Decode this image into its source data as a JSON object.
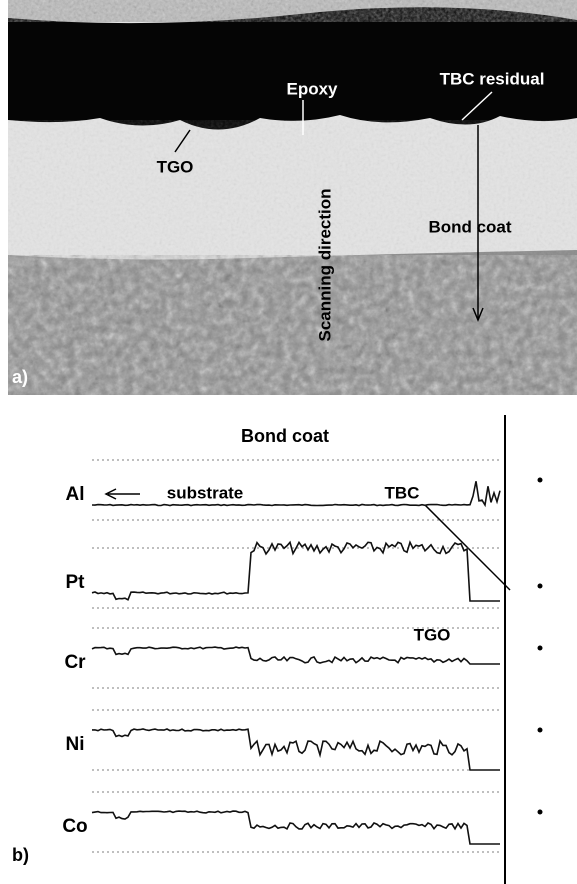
{
  "micrograph": {
    "labels": {
      "epoxy": "Epoxy",
      "tbc_residual": "TBC residual",
      "tgo": "TGO",
      "scanning_direction": "Scanning direction",
      "bond_coat": "Bond coat"
    },
    "panel": "a)"
  },
  "line_scan": {
    "title": "Bond coat",
    "annotations": {
      "substrate": "substrate",
      "tbc": "TBC",
      "tgo": "TGO"
    },
    "elements": [
      "Al",
      "Pt",
      "Cr",
      "Ni",
      "Co"
    ],
    "panel": "b)"
  }
}
